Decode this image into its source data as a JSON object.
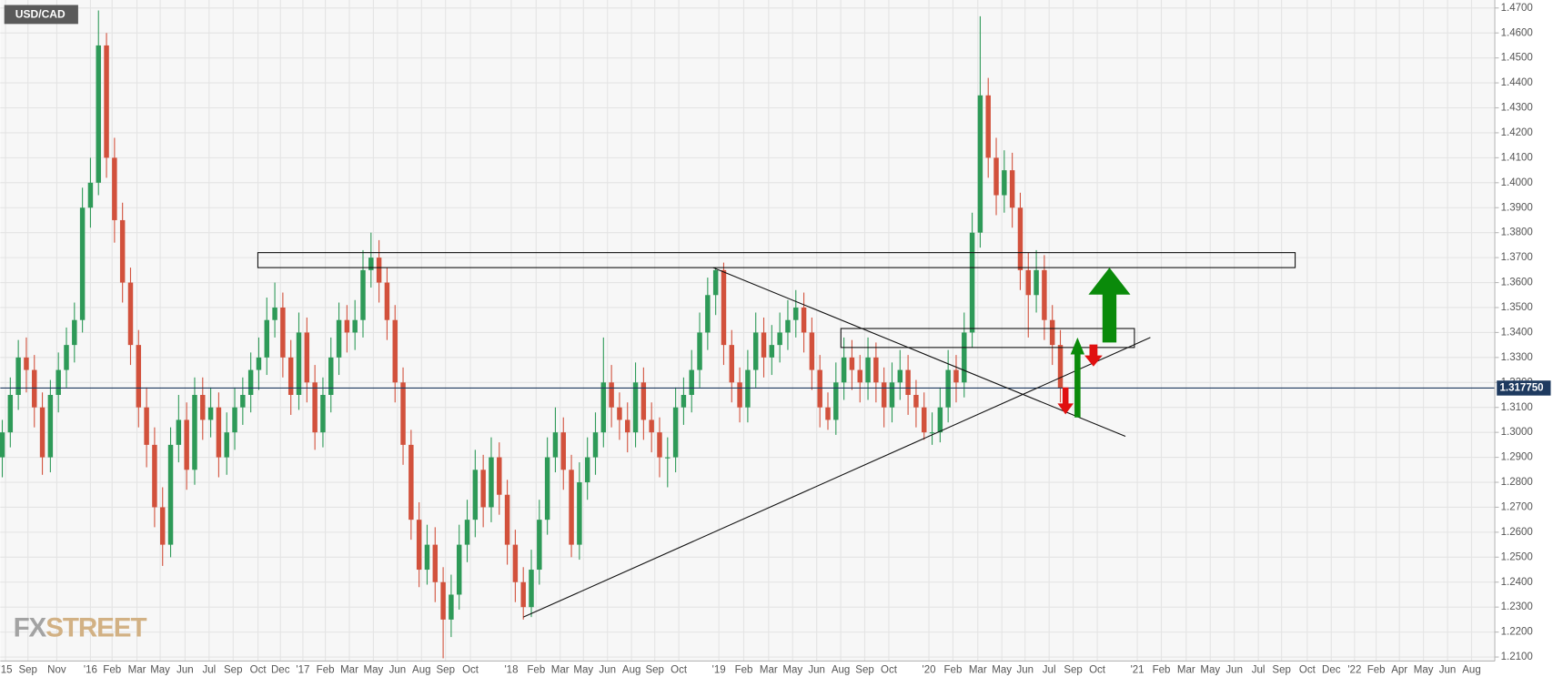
{
  "chart_data": {
    "type": "candlestick",
    "title": "USD/CAD",
    "up_color": "#2e9a58",
    "down_color": "#d2513c",
    "grid": true,
    "candles": [
      [
        1.29,
        1.305,
        1.282,
        1.3
      ],
      [
        1.3,
        1.322,
        1.294,
        1.315
      ],
      [
        1.315,
        1.337,
        1.309,
        1.33
      ],
      [
        1.33,
        1.338,
        1.316,
        1.325
      ],
      [
        1.325,
        1.331,
        1.302,
        1.31
      ],
      [
        1.31,
        1.316,
        1.283,
        1.29
      ],
      [
        1.29,
        1.321,
        1.284,
        1.315
      ],
      [
        1.315,
        1.332,
        1.308,
        1.325
      ],
      [
        1.325,
        1.342,
        1.318,
        1.335
      ],
      [
        1.335,
        1.352,
        1.328,
        1.345
      ],
      [
        1.345,
        1.398,
        1.34,
        1.39
      ],
      [
        1.39,
        1.41,
        1.382,
        1.4
      ],
      [
        1.4,
        1.469,
        1.395,
        1.455
      ],
      [
        1.455,
        1.46,
        1.402,
        1.41
      ],
      [
        1.41,
        1.418,
        1.376,
        1.385
      ],
      [
        1.385,
        1.392,
        1.352,
        1.36
      ],
      [
        1.36,
        1.366,
        1.327,
        1.335
      ],
      [
        1.335,
        1.341,
        1.302,
        1.31
      ],
      [
        1.31,
        1.318,
        1.286,
        1.295
      ],
      [
        1.295,
        1.302,
        1.262,
        1.27
      ],
      [
        1.27,
        1.278,
        1.2465,
        1.255
      ],
      [
        1.255,
        1.302,
        1.25,
        1.295
      ],
      [
        1.295,
        1.315,
        1.288,
        1.305
      ],
      [
        1.305,
        1.312,
        1.277,
        1.285
      ],
      [
        1.285,
        1.322,
        1.279,
        1.315
      ],
      [
        1.315,
        1.322,
        1.297,
        1.305
      ],
      [
        1.305,
        1.318,
        1.298,
        1.31
      ],
      [
        1.31,
        1.316,
        1.282,
        1.29
      ],
      [
        1.29,
        1.308,
        1.283,
        1.3
      ],
      [
        1.3,
        1.318,
        1.293,
        1.31
      ],
      [
        1.31,
        1.322,
        1.303,
        1.315
      ],
      [
        1.315,
        1.332,
        1.308,
        1.325
      ],
      [
        1.325,
        1.338,
        1.317,
        1.33
      ],
      [
        1.33,
        1.354,
        1.323,
        1.345
      ],
      [
        1.345,
        1.36,
        1.338,
        1.35
      ],
      [
        1.35,
        1.356,
        1.322,
        1.33
      ],
      [
        1.33,
        1.337,
        1.307,
        1.315
      ],
      [
        1.315,
        1.348,
        1.309,
        1.34
      ],
      [
        1.34,
        1.346,
        1.312,
        1.32
      ],
      [
        1.32,
        1.327,
        1.293,
        1.3
      ],
      [
        1.3,
        1.322,
        1.294,
        1.315
      ],
      [
        1.315,
        1.338,
        1.308,
        1.33
      ],
      [
        1.33,
        1.352,
        1.323,
        1.345
      ],
      [
        1.345,
        1.351,
        1.332,
        1.34
      ],
      [
        1.34,
        1.353,
        1.333,
        1.345
      ],
      [
        1.345,
        1.373,
        1.338,
        1.365
      ],
      [
        1.365,
        1.38,
        1.358,
        1.37
      ],
      [
        1.37,
        1.377,
        1.352,
        1.36
      ],
      [
        1.36,
        1.366,
        1.337,
        1.345
      ],
      [
        1.345,
        1.351,
        1.312,
        1.32
      ],
      [
        1.32,
        1.326,
        1.287,
        1.295
      ],
      [
        1.295,
        1.301,
        1.257,
        1.265
      ],
      [
        1.265,
        1.272,
        1.238,
        1.245
      ],
      [
        1.245,
        1.263,
        1.239,
        1.255
      ],
      [
        1.255,
        1.262,
        1.232,
        1.24
      ],
      [
        1.24,
        1.246,
        1.2095,
        1.225
      ],
      [
        1.225,
        1.243,
        1.218,
        1.235
      ],
      [
        1.235,
        1.263,
        1.229,
        1.255
      ],
      [
        1.255,
        1.273,
        1.248,
        1.265
      ],
      [
        1.265,
        1.293,
        1.258,
        1.285
      ],
      [
        1.285,
        1.291,
        1.262,
        1.27
      ],
      [
        1.27,
        1.298,
        1.264,
        1.29
      ],
      [
        1.29,
        1.296,
        1.267,
        1.275
      ],
      [
        1.275,
        1.281,
        1.247,
        1.255
      ],
      [
        1.255,
        1.261,
        1.232,
        1.24
      ],
      [
        1.24,
        1.246,
        1.225,
        1.23
      ],
      [
        1.23,
        1.253,
        1.226,
        1.245
      ],
      [
        1.245,
        1.273,
        1.239,
        1.265
      ],
      [
        1.265,
        1.298,
        1.259,
        1.29
      ],
      [
        1.29,
        1.31,
        1.284,
        1.3
      ],
      [
        1.3,
        1.306,
        1.277,
        1.285
      ],
      [
        1.285,
        1.291,
        1.25,
        1.255
      ],
      [
        1.255,
        1.288,
        1.249,
        1.28
      ],
      [
        1.28,
        1.298,
        1.273,
        1.29
      ],
      [
        1.29,
        1.308,
        1.283,
        1.3
      ],
      [
        1.3,
        1.338,
        1.294,
        1.32
      ],
      [
        1.32,
        1.327,
        1.302,
        1.31
      ],
      [
        1.31,
        1.316,
        1.297,
        1.305
      ],
      [
        1.305,
        1.312,
        1.292,
        1.3
      ],
      [
        1.3,
        1.328,
        1.294,
        1.32
      ],
      [
        1.32,
        1.326,
        1.297,
        1.305
      ],
      [
        1.305,
        1.312,
        1.292,
        1.3
      ],
      [
        1.3,
        1.306,
        1.282,
        1.29
      ],
      [
        1.29,
        1.298,
        1.278,
        1.29
      ],
      [
        1.29,
        1.318,
        1.284,
        1.31
      ],
      [
        1.31,
        1.322,
        1.303,
        1.315
      ],
      [
        1.315,
        1.333,
        1.308,
        1.325
      ],
      [
        1.325,
        1.348,
        1.318,
        1.34
      ],
      [
        1.34,
        1.362,
        1.333,
        1.355
      ],
      [
        1.355,
        1.366,
        1.347,
        1.365
      ],
      [
        1.365,
        1.368,
        1.327,
        1.335
      ],
      [
        1.335,
        1.341,
        1.312,
        1.32
      ],
      [
        1.32,
        1.326,
        1.304,
        1.31
      ],
      [
        1.31,
        1.333,
        1.304,
        1.325
      ],
      [
        1.325,
        1.348,
        1.318,
        1.34
      ],
      [
        1.34,
        1.346,
        1.322,
        1.33
      ],
      [
        1.33,
        1.343,
        1.323,
        1.335
      ],
      [
        1.335,
        1.348,
        1.328,
        1.34
      ],
      [
        1.34,
        1.353,
        1.333,
        1.345
      ],
      [
        1.345,
        1.357,
        1.338,
        1.35
      ],
      [
        1.35,
        1.356,
        1.332,
        1.34
      ],
      [
        1.34,
        1.346,
        1.317,
        1.325
      ],
      [
        1.325,
        1.331,
        1.302,
        1.31
      ],
      [
        1.31,
        1.316,
        1.301,
        1.305
      ],
      [
        1.305,
        1.328,
        1.299,
        1.32
      ],
      [
        1.32,
        1.338,
        1.313,
        1.33
      ],
      [
        1.33,
        1.337,
        1.317,
        1.325
      ],
      [
        1.325,
        1.331,
        1.312,
        1.32
      ],
      [
        1.32,
        1.338,
        1.313,
        1.33
      ],
      [
        1.33,
        1.336,
        1.312,
        1.32
      ],
      [
        1.32,
        1.326,
        1.302,
        1.31
      ],
      [
        1.31,
        1.328,
        1.304,
        1.32
      ],
      [
        1.32,
        1.333,
        1.313,
        1.325
      ],
      [
        1.325,
        1.331,
        1.307,
        1.315
      ],
      [
        1.315,
        1.321,
        1.302,
        1.31
      ],
      [
        1.31,
        1.316,
        1.297,
        1.3
      ],
      [
        1.3,
        1.308,
        1.295,
        1.3
      ],
      [
        1.3,
        1.318,
        1.296,
        1.31
      ],
      [
        1.31,
        1.333,
        1.304,
        1.325
      ],
      [
        1.325,
        1.331,
        1.312,
        1.32
      ],
      [
        1.32,
        1.348,
        1.314,
        1.34
      ],
      [
        1.34,
        1.388,
        1.334,
        1.38
      ],
      [
        1.38,
        1.4667,
        1.374,
        1.435
      ],
      [
        1.435,
        1.442,
        1.402,
        1.41
      ],
      [
        1.41,
        1.418,
        1.387,
        1.395
      ],
      [
        1.395,
        1.413,
        1.388,
        1.405
      ],
      [
        1.405,
        1.412,
        1.382,
        1.39
      ],
      [
        1.39,
        1.396,
        1.357,
        1.365
      ],
      [
        1.365,
        1.372,
        1.338,
        1.355
      ],
      [
        1.355,
        1.373,
        1.348,
        1.365
      ],
      [
        1.365,
        1.371,
        1.337,
        1.345
      ],
      [
        1.345,
        1.351,
        1.327,
        1.335
      ],
      [
        1.335,
        1.341,
        1.312,
        1.31775
      ]
    ],
    "xlim": [
      -0.25,
      186.2
    ],
    "xticks": [
      {
        "value": 0.4,
        "label": "'15"
      },
      {
        "value": 3.2,
        "label": "Sep"
      },
      {
        "value": 6.8,
        "label": "Nov"
      },
      {
        "value": 11,
        "label": "'16"
      },
      {
        "value": 13.7,
        "label": "Feb"
      },
      {
        "value": 16.8,
        "label": "Mar"
      },
      {
        "value": 19.7,
        "label": "May"
      },
      {
        "value": 22.8,
        "label": "Jun"
      },
      {
        "value": 25.8,
        "label": "Jul"
      },
      {
        "value": 28.8,
        "label": "Sep"
      },
      {
        "value": 31.9,
        "label": "Oct"
      },
      {
        "value": 34.7,
        "label": "Dec"
      },
      {
        "value": 37.5,
        "label": "'17"
      },
      {
        "value": 40.3,
        "label": "Feb"
      },
      {
        "value": 43.3,
        "label": "Mar"
      },
      {
        "value": 46.3,
        "label": "May"
      },
      {
        "value": 49.3,
        "label": "Jun"
      },
      {
        "value": 52.3,
        "label": "Aug"
      },
      {
        "value": 55.3,
        "label": "Sep"
      },
      {
        "value": 58.4,
        "label": "Oct"
      },
      {
        "value": 63.5,
        "label": "'18"
      },
      {
        "value": 66.6,
        "label": "Feb"
      },
      {
        "value": 69.6,
        "label": "Mar"
      },
      {
        "value": 72.5,
        "label": "May"
      },
      {
        "value": 75.5,
        "label": "Jun"
      },
      {
        "value": 78.5,
        "label": "Aug"
      },
      {
        "value": 81.4,
        "label": "Sep"
      },
      {
        "value": 84.4,
        "label": "Oct"
      },
      {
        "value": 89.4,
        "label": "'19"
      },
      {
        "value": 92.5,
        "label": "Feb"
      },
      {
        "value": 95.6,
        "label": "Mar"
      },
      {
        "value": 98.6,
        "label": "May"
      },
      {
        "value": 101.6,
        "label": "Jun"
      },
      {
        "value": 104.6,
        "label": "Aug"
      },
      {
        "value": 107.6,
        "label": "Sep"
      },
      {
        "value": 110.6,
        "label": "Oct"
      },
      {
        "value": 115.6,
        "label": "'20"
      },
      {
        "value": 118.6,
        "label": "Feb"
      },
      {
        "value": 121.7,
        "label": "Mar"
      },
      {
        "value": 124.7,
        "label": "May"
      },
      {
        "value": 127.6,
        "label": "Jun"
      },
      {
        "value": 130.6,
        "label": "Jul"
      },
      {
        "value": 133.6,
        "label": "Sep"
      },
      {
        "value": 136.6,
        "label": "Oct"
      },
      {
        "value": 141.6,
        "label": "'21"
      },
      {
        "value": 144.6,
        "label": "Feb"
      },
      {
        "value": 147.7,
        "label": "Mar"
      },
      {
        "value": 150.7,
        "label": "May"
      },
      {
        "value": 153.7,
        "label": "Jun"
      },
      {
        "value": 156.7,
        "label": "Jul"
      },
      {
        "value": 159.6,
        "label": "Sep"
      },
      {
        "value": 162.8,
        "label": "Oct"
      },
      {
        "value": 165.8,
        "label": "Dec"
      },
      {
        "value": 168.7,
        "label": "'22"
      },
      {
        "value": 171.4,
        "label": "Feb"
      },
      {
        "value": 174.3,
        "label": "Apr"
      },
      {
        "value": 177.3,
        "label": "May"
      },
      {
        "value": 180.3,
        "label": "Jun"
      },
      {
        "value": 183.3,
        "label": "Aug"
      }
    ],
    "ylim": [
      1.2084,
      1.4732
    ],
    "yticks": [
      {
        "value": 1.21,
        "label": "1.2100"
      },
      {
        "value": 1.22,
        "label": "1.2200"
      },
      {
        "value": 1.23,
        "label": "1.2300"
      },
      {
        "value": 1.24,
        "label": "1.2400"
      },
      {
        "value": 1.25,
        "label": "1.2500"
      },
      {
        "value": 1.26,
        "label": "1.2600"
      },
      {
        "value": 1.27,
        "label": "1.2700"
      },
      {
        "value": 1.28,
        "label": "1.2800"
      },
      {
        "value": 1.29,
        "label": "1.2900"
      },
      {
        "value": 1.3,
        "label": "1.3000"
      },
      {
        "value": 1.31,
        "label": "1.3100"
      },
      {
        "value": 1.32,
        "label": "1.3200"
      },
      {
        "value": 1.33,
        "label": "1.3300"
      },
      {
        "value": 1.34,
        "label": "1.3400"
      },
      {
        "value": 1.35,
        "label": "1.3500"
      },
      {
        "value": 1.36,
        "label": "1.3600"
      },
      {
        "value": 1.37,
        "label": "1.3700"
      },
      {
        "value": 1.38,
        "label": "1.3800"
      },
      {
        "value": 1.39,
        "label": "1.3900"
      },
      {
        "value": 1.4,
        "label": "1.4000"
      },
      {
        "value": 1.41,
        "label": "1.4100"
      },
      {
        "value": 1.42,
        "label": "1.4200"
      },
      {
        "value": 1.43,
        "label": "1.4300"
      },
      {
        "value": 1.44,
        "label": "1.4400"
      },
      {
        "value": 1.45,
        "label": "1.4500"
      },
      {
        "value": 1.46,
        "label": "1.4600"
      },
      {
        "value": 1.47,
        "label": "1.4700"
      }
    ],
    "last_price": {
      "value": 1.31775,
      "label": "1.317750"
    },
    "watermark": [
      "FX",
      "STREET"
    ]
  }
}
